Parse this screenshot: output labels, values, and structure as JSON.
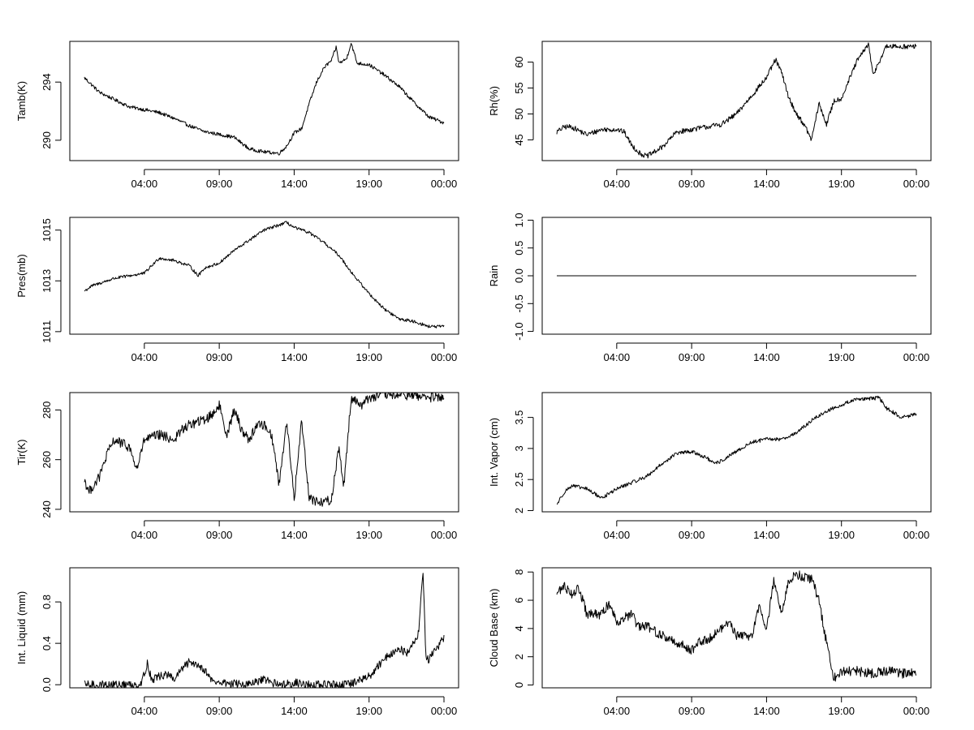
{
  "figure": {
    "colors": {
      "line": "#000000",
      "frame": "#000000",
      "background": "#ffffff"
    },
    "time_ticks": [
      "04:00",
      "09:00",
      "14:00",
      "19:00",
      "00:00"
    ]
  },
  "chart_data": [
    {
      "id": "tamb",
      "type": "line",
      "ylabel": "Tamb(K)",
      "xlabel": "",
      "x_range_hours": [
        0,
        24
      ],
      "xtick_hours": [
        4,
        9,
        14,
        19,
        24
      ],
      "ylim": [
        288.6,
        296.8
      ],
      "yticks": [
        290,
        294
      ],
      "noise": 0.12,
      "points": [
        [
          0,
          294.3
        ],
        [
          0.5,
          293.8
        ],
        [
          1,
          293.3
        ],
        [
          2,
          292.8
        ],
        [
          3,
          292.3
        ],
        [
          4,
          292.1
        ],
        [
          5,
          291.9
        ],
        [
          6,
          291.5
        ],
        [
          7,
          291.0
        ],
        [
          8,
          290.6
        ],
        [
          9,
          290.4
        ],
        [
          10,
          290.2
        ],
        [
          10.5,
          289.8
        ],
        [
          11,
          289.4
        ],
        [
          12,
          289.2
        ],
        [
          13,
          289.1
        ],
        [
          13.5,
          289.6
        ],
        [
          14,
          290.5
        ],
        [
          14.5,
          290.8
        ],
        [
          15,
          292.5
        ],
        [
          15.5,
          294.0
        ],
        [
          16,
          295.0
        ],
        [
          16.5,
          295.5
        ],
        [
          16.8,
          296.4
        ],
        [
          17,
          295.3
        ],
        [
          17.5,
          295.6
        ],
        [
          17.8,
          296.7
        ],
        [
          18.2,
          295.3
        ],
        [
          19,
          295.2
        ],
        [
          20,
          294.5
        ],
        [
          21,
          293.7
        ],
        [
          22,
          292.6
        ],
        [
          23,
          291.6
        ],
        [
          24,
          291.2
        ]
      ]
    },
    {
      "id": "rh",
      "type": "line",
      "ylabel": "Rh(%)",
      "xlabel": "",
      "x_range_hours": [
        0,
        24
      ],
      "xtick_hours": [
        4,
        9,
        14,
        19,
        24
      ],
      "ylim": [
        41,
        64
      ],
      "yticks": [
        45,
        50,
        55,
        60
      ],
      "noise": 0.5,
      "points": [
        [
          0,
          46.5
        ],
        [
          0.5,
          47.5
        ],
        [
          1,
          47.5
        ],
        [
          2,
          46.0
        ],
        [
          3,
          47.0
        ],
        [
          4,
          47.0
        ],
        [
          4.5,
          46.5
        ],
        [
          5,
          44.0
        ],
        [
          5.5,
          42.5
        ],
        [
          6,
          41.8
        ],
        [
          7,
          43.5
        ],
        [
          8,
          46.5
        ],
        [
          9,
          47.0
        ],
        [
          10,
          47.5
        ],
        [
          11,
          48.0
        ],
        [
          12,
          50.0
        ],
        [
          13,
          53.5
        ],
        [
          14,
          57.0
        ],
        [
          14.6,
          60.5
        ],
        [
          15,
          58.0
        ],
        [
          15.5,
          53.0
        ],
        [
          16,
          50.0
        ],
        [
          16.5,
          48.0
        ],
        [
          17,
          45.0
        ],
        [
          17.5,
          52.0
        ],
        [
          18,
          48.0
        ],
        [
          18.5,
          52.5
        ],
        [
          19,
          53.0
        ],
        [
          20,
          60.0
        ],
        [
          20.8,
          63.5
        ],
        [
          21.1,
          57.5
        ],
        [
          21.5,
          60.0
        ],
        [
          22,
          63.0
        ],
        [
          23,
          63.0
        ],
        [
          24,
          63.0
        ]
      ]
    },
    {
      "id": "pres",
      "type": "line",
      "ylabel": "Pres(mb)",
      "xlabel": "",
      "x_range_hours": [
        0,
        24
      ],
      "xtick_hours": [
        4,
        9,
        14,
        19,
        24
      ],
      "ylim": [
        1010.9,
        1015.5
      ],
      "yticks": [
        1011,
        1013,
        1015
      ],
      "noise": 0.06,
      "points": [
        [
          0,
          1012.6
        ],
        [
          0.5,
          1012.8
        ],
        [
          2,
          1013.1
        ],
        [
          3,
          1013.2
        ],
        [
          4,
          1013.3
        ],
        [
          5,
          1013.9
        ],
        [
          6,
          1013.8
        ],
        [
          7,
          1013.6
        ],
        [
          7.6,
          1013.2
        ],
        [
          8,
          1013.5
        ],
        [
          9,
          1013.7
        ],
        [
          10,
          1014.2
        ],
        [
          11,
          1014.6
        ],
        [
          12,
          1015.0
        ],
        [
          13,
          1015.2
        ],
        [
          13.5,
          1015.3
        ],
        [
          14,
          1015.1
        ],
        [
          15,
          1014.9
        ],
        [
          16,
          1014.5
        ],
        [
          17,
          1014.0
        ],
        [
          18,
          1013.2
        ],
        [
          19,
          1012.5
        ],
        [
          20,
          1011.9
        ],
        [
          21,
          1011.5
        ],
        [
          22,
          1011.4
        ],
        [
          23,
          1011.2
        ],
        [
          24,
          1011.2
        ]
      ]
    },
    {
      "id": "rain",
      "type": "line",
      "ylabel": "Rain",
      "xlabel": "",
      "x_range_hours": [
        0,
        24
      ],
      "xtick_hours": [
        4,
        9,
        14,
        19,
        24
      ],
      "ylim": [
        -1.05,
        1.05
      ],
      "yticks": [
        -1.0,
        -0.5,
        0.0,
        0.5,
        1.0
      ],
      "ytick_labels": [
        "-1.0",
        "-0.5",
        "0.0",
        "0.5",
        "1.0"
      ],
      "noise": 0,
      "points": [
        [
          0,
          0
        ],
        [
          24,
          0
        ]
      ]
    },
    {
      "id": "tir",
      "type": "line",
      "ylabel": "Tir(K)",
      "xlabel": "",
      "x_range_hours": [
        0,
        24
      ],
      "xtick_hours": [
        4,
        9,
        14,
        19,
        24
      ],
      "ylim": [
        239,
        287
      ],
      "yticks": [
        240,
        260,
        280
      ],
      "noise": 2.0,
      "points": [
        [
          0,
          252
        ],
        [
          0.3,
          247
        ],
        [
          1,
          253
        ],
        [
          1.5,
          262
        ],
        [
          2,
          268
        ],
        [
          3,
          265
        ],
        [
          3.5,
          256
        ],
        [
          4,
          268
        ],
        [
          5,
          270
        ],
        [
          6,
          268
        ],
        [
          6.5,
          272
        ],
        [
          7,
          274
        ],
        [
          8,
          276
        ],
        [
          8.5,
          278
        ],
        [
          9,
          282
        ],
        [
          9.5,
          270
        ],
        [
          10,
          280
        ],
        [
          10.5,
          272
        ],
        [
          11,
          268
        ],
        [
          11.5,
          274
        ],
        [
          12,
          274
        ],
        [
          12.5,
          270
        ],
        [
          13,
          250
        ],
        [
          13.5,
          276
        ],
        [
          14,
          244
        ],
        [
          14.5,
          276
        ],
        [
          15,
          245
        ],
        [
          15.5,
          243
        ],
        [
          16,
          243
        ],
        [
          16.5,
          244
        ],
        [
          17,
          266
        ],
        [
          17.3,
          248
        ],
        [
          17.8,
          285
        ],
        [
          18.5,
          282
        ],
        [
          19,
          285
        ],
        [
          20,
          286
        ],
        [
          21,
          286
        ],
        [
          22,
          286
        ],
        [
          23,
          285
        ],
        [
          24,
          285
        ]
      ]
    },
    {
      "id": "vapor",
      "type": "line",
      "ylabel": "Int. Vapor (cm)",
      "xlabel": "",
      "x_range_hours": [
        0,
        24
      ],
      "xtick_hours": [
        4,
        9,
        14,
        19,
        24
      ],
      "ylim": [
        1.98,
        3.9
      ],
      "yticks": [
        2.0,
        2.5,
        3.0,
        3.5
      ],
      "noise": 0.03,
      "points": [
        [
          0,
          2.1
        ],
        [
          0.5,
          2.3
        ],
        [
          1,
          2.4
        ],
        [
          2,
          2.35
        ],
        [
          3,
          2.2
        ],
        [
          4,
          2.35
        ],
        [
          5,
          2.45
        ],
        [
          6,
          2.55
        ],
        [
          7,
          2.75
        ],
        [
          8,
          2.92
        ],
        [
          9,
          2.95
        ],
        [
          10,
          2.85
        ],
        [
          10.5,
          2.75
        ],
        [
          11,
          2.8
        ],
        [
          12,
          2.95
        ],
        [
          13,
          3.1
        ],
        [
          14,
          3.15
        ],
        [
          15,
          3.15
        ],
        [
          16,
          3.25
        ],
        [
          17,
          3.45
        ],
        [
          18,
          3.6
        ],
        [
          19,
          3.7
        ],
        [
          20,
          3.8
        ],
        [
          21,
          3.8
        ],
        [
          21.5,
          3.82
        ],
        [
          22,
          3.65
        ],
        [
          23,
          3.5
        ],
        [
          24,
          3.55
        ]
      ]
    },
    {
      "id": "liquid",
      "type": "line",
      "ylabel": "Int. Liquid (mm)",
      "xlabel": "",
      "x_range_hours": [
        0,
        24
      ],
      "xtick_hours": [
        4,
        9,
        14,
        19,
        24
      ],
      "ylim": [
        -0.03,
        1.13
      ],
      "yticks": [
        0.0,
        0.4,
        0.8
      ],
      "ytick_labels": [
        "0.0",
        "0.4",
        "0.8"
      ],
      "noise": 0.04,
      "points": [
        [
          0,
          0.0
        ],
        [
          3.5,
          0.0
        ],
        [
          3.8,
          0.02
        ],
        [
          4.2,
          0.2
        ],
        [
          4.5,
          0.05
        ],
        [
          5,
          0.08
        ],
        [
          5.5,
          0.1
        ],
        [
          6,
          0.05
        ],
        [
          6.5,
          0.15
        ],
        [
          7,
          0.22
        ],
        [
          7.5,
          0.2
        ],
        [
          8,
          0.15
        ],
        [
          8.3,
          0.08
        ],
        [
          8.6,
          0.03
        ],
        [
          9,
          0.02
        ],
        [
          10,
          0.01
        ],
        [
          11,
          0.0
        ],
        [
          12,
          0.05
        ],
        [
          12.5,
          0.02
        ],
        [
          13,
          0.0
        ],
        [
          14,
          0.02
        ],
        [
          15,
          0.0
        ],
        [
          17,
          0.0
        ],
        [
          17.5,
          0.0
        ],
        [
          18,
          0.02
        ],
        [
          19,
          0.08
        ],
        [
          20,
          0.25
        ],
        [
          21,
          0.35
        ],
        [
          21.5,
          0.3
        ],
        [
          22.3,
          0.5
        ],
        [
          22.6,
          1.1
        ],
        [
          22.8,
          0.25
        ],
        [
          23,
          0.25
        ],
        [
          23.5,
          0.35
        ],
        [
          24,
          0.45
        ]
      ]
    },
    {
      "id": "cloudbase",
      "type": "line",
      "ylabel": "Cloud Base (km)",
      "xlabel": "",
      "x_range_hours": [
        0,
        24
      ],
      "xtick_hours": [
        4,
        9,
        14,
        19,
        24
      ],
      "ylim": [
        -0.2,
        8.3
      ],
      "yticks": [
        0,
        2,
        4,
        6,
        8
      ],
      "noise": 0.35,
      "points": [
        [
          0,
          6.5
        ],
        [
          0.5,
          7.0
        ],
        [
          1,
          6.5
        ],
        [
          1.5,
          6.8
        ],
        [
          2,
          5.0
        ],
        [
          3,
          5.0
        ],
        [
          3.5,
          5.8
        ],
        [
          4,
          4.5
        ],
        [
          5,
          5.0
        ],
        [
          5.5,
          4.0
        ],
        [
          6,
          4.2
        ],
        [
          7,
          3.5
        ],
        [
          8,
          3.0
        ],
        [
          9,
          2.5
        ],
        [
          9.5,
          3.0
        ],
        [
          10,
          3.2
        ],
        [
          11,
          4.0
        ],
        [
          11.5,
          4.5
        ],
        [
          12,
          3.5
        ],
        [
          13,
          3.5
        ],
        [
          13.5,
          5.5
        ],
        [
          14,
          4.0
        ],
        [
          14.5,
          7.5
        ],
        [
          15,
          5.0
        ],
        [
          15.5,
          7.5
        ],
        [
          16,
          7.8
        ],
        [
          17,
          7.5
        ],
        [
          17.5,
          6.0
        ],
        [
          18,
          3.0
        ],
        [
          18.5,
          0.5
        ],
        [
          19,
          1.0
        ],
        [
          20,
          1.0
        ],
        [
          21,
          0.8
        ],
        [
          22,
          1.0
        ],
        [
          23,
          0.8
        ],
        [
          24,
          1.0
        ]
      ]
    }
  ]
}
